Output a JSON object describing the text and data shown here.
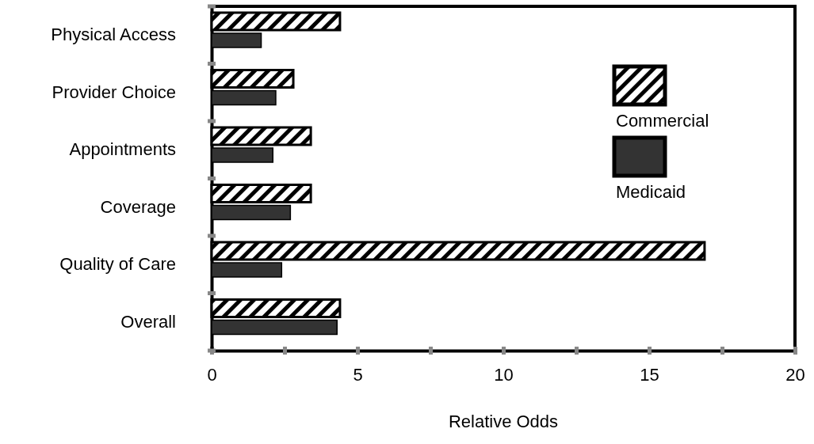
{
  "chart_data": {
    "type": "bar",
    "orientation": "horizontal",
    "xlabel": "Relative Odds",
    "categories": [
      "Physical Access",
      "Provider Choice",
      "Appointments",
      "Coverage",
      "Quality of Care",
      "Overall"
    ],
    "series": [
      {
        "name": "Commercial",
        "color": "#000000",
        "values": [
          4.4,
          2.8,
          3.4,
          3.4,
          16.9,
          4.4
        ]
      },
      {
        "name": "Medicaid",
        "color": "#333333",
        "values": [
          1.7,
          2.2,
          2.1,
          2.7,
          2.4,
          4.3
        ]
      }
    ],
    "xlim": [
      0,
      20
    ],
    "xticks": [
      0,
      {
        "value": 2.5,
        "label": null
      },
      5,
      {
        "value": 7.5,
        "label": null
      },
      10,
      {
        "value": 12.5,
        "label": null
      },
      15,
      {
        "value": 17.5,
        "label": null
      },
      20
    ],
    "legend": "right",
    "grid": false
  }
}
